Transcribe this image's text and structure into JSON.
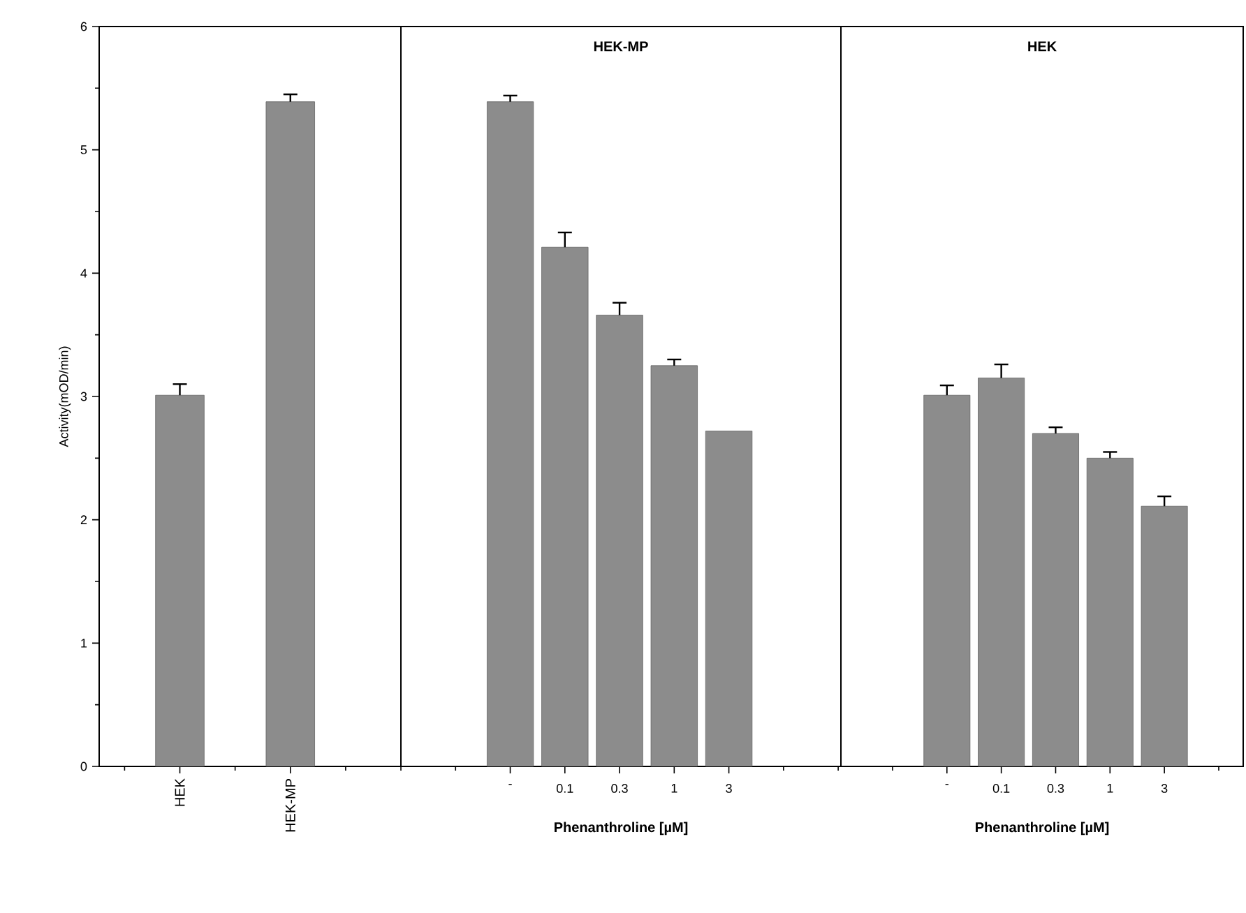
{
  "chart_data": [
    {
      "type": "bar",
      "ylabel": "Activity(mOD/min)",
      "categories": [
        "HEK",
        "HEK-MP"
      ],
      "values": [
        3.01,
        5.39
      ],
      "errors": [
        0.09,
        0.06
      ],
      "color": "#8c8c8c",
      "ylim": [
        0,
        6
      ],
      "yticks": [
        0,
        1,
        2,
        3,
        4,
        5,
        6
      ]
    },
    {
      "type": "bar",
      "title": "HEK-MP",
      "xlabel": "Phenanthroline [µM]",
      "categories": [
        "-",
        "0.1",
        "0.3",
        "1",
        "3"
      ],
      "values": [
        5.39,
        4.21,
        3.66,
        3.25,
        2.72
      ],
      "errors": [
        0.05,
        0.12,
        0.1,
        0.05,
        null
      ],
      "color": "#8c8c8c",
      "ylim": [
        0,
        6
      ],
      "tick_labels": "x"
    },
    {
      "type": "bar",
      "title": "HEK",
      "xlabel": "Phenanthroline [µM]",
      "categories": [
        "-",
        "0.1",
        "0.3",
        "1",
        "3"
      ],
      "values": [
        3.01,
        3.15,
        2.7,
        2.5,
        2.11
      ],
      "errors": [
        0.08,
        0.11,
        0.05,
        0.05,
        0.08
      ],
      "color": "#8c8c8c",
      "ylim": [
        0,
        6
      ],
      "tick_labels": "x"
    }
  ]
}
